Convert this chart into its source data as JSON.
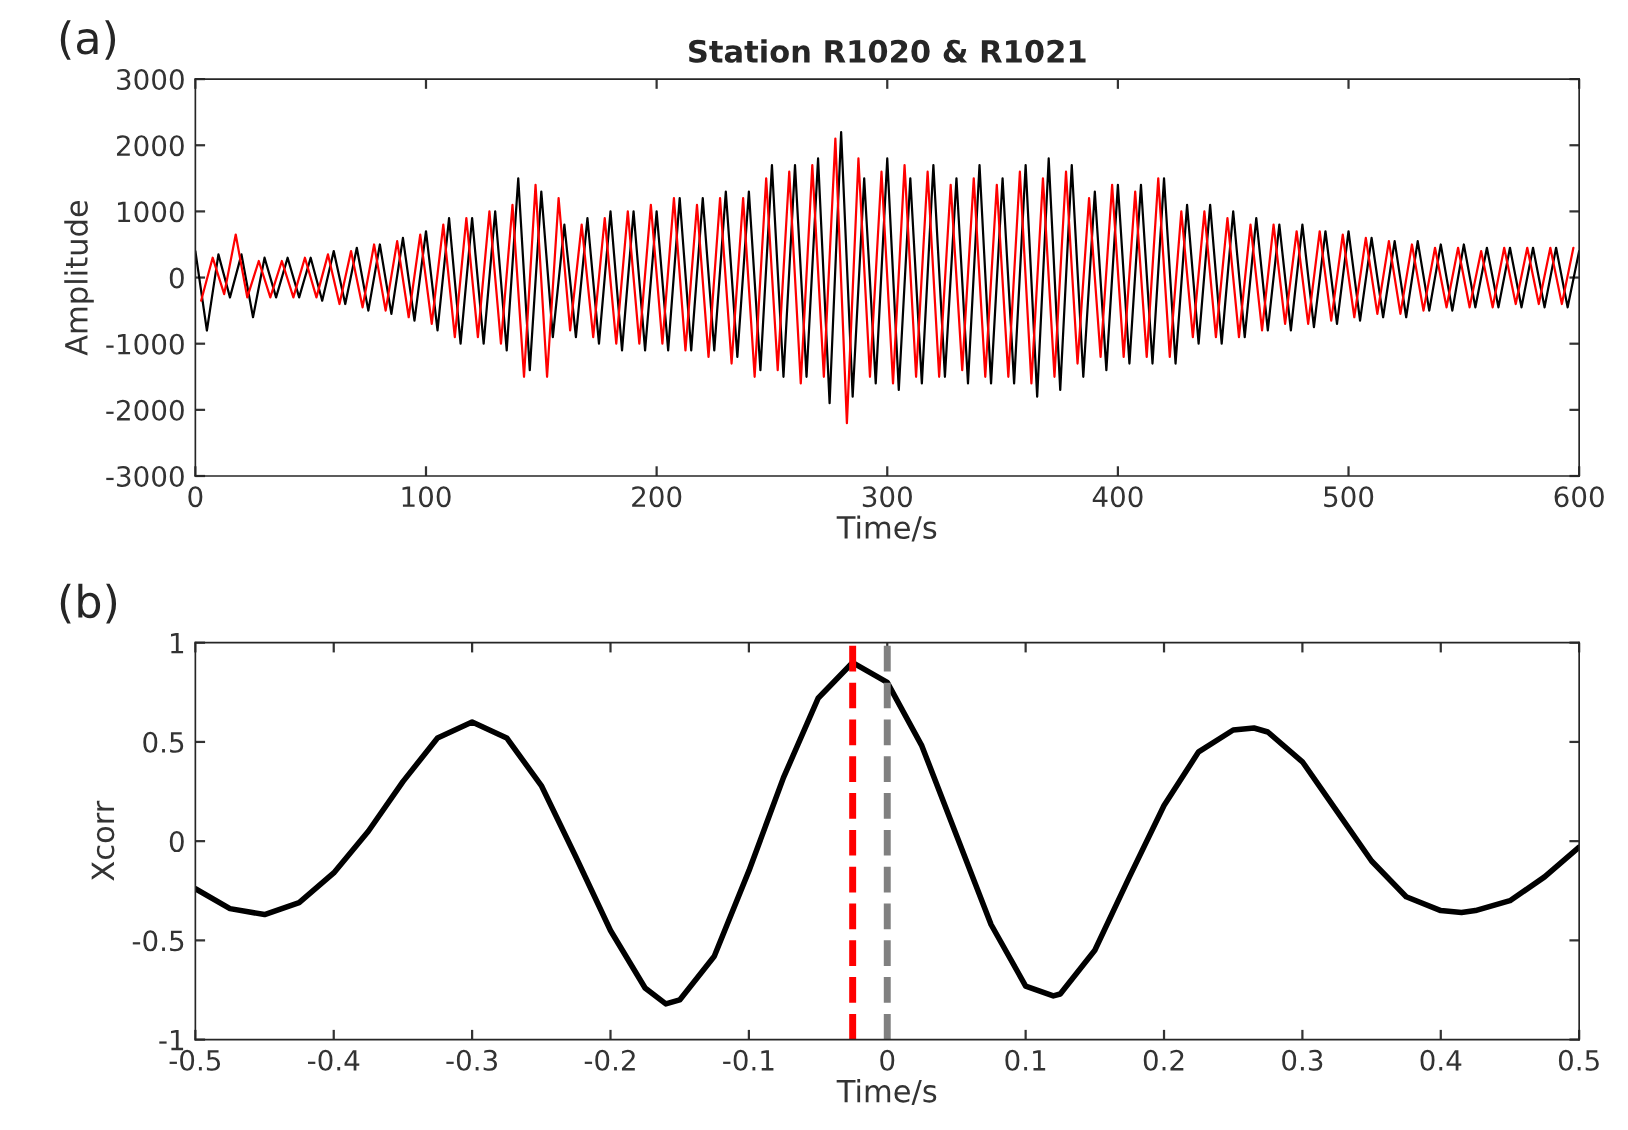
{
  "chart_data": [
    {
      "type": "line",
      "title": "Station R1020 & R1021",
      "xlabel": "Time/s",
      "ylabel": "Amplitude",
      "annotations": [
        "(a)"
      ],
      "xlim": [
        0,
        600
      ],
      "ylim": [
        -3000,
        3000
      ],
      "xticks": [
        0,
        100,
        200,
        300,
        400,
        500,
        600
      ],
      "yticks": [
        -3000,
        -2000,
        -1000,
        0,
        1000,
        2000,
        3000
      ],
      "grid": false,
      "legend": false,
      "series": [
        {
          "color": "#000000",
          "x": [
            0,
            5,
            10,
            15,
            20,
            25,
            30,
            35,
            40,
            45,
            50,
            55,
            60,
            65,
            70,
            75,
            80,
            85,
            90,
            95,
            100,
            105,
            110,
            115,
            120,
            125,
            130,
            135,
            140,
            145,
            150,
            155,
            160,
            165,
            170,
            175,
            180,
            185,
            190,
            195,
            200,
            205,
            210,
            215,
            220,
            225,
            230,
            235,
            240,
            245,
            250,
            255,
            260,
            265,
            270,
            275,
            280,
            285,
            290,
            295,
            300,
            305,
            310,
            315,
            320,
            325,
            330,
            335,
            340,
            345,
            350,
            355,
            360,
            365,
            370,
            375,
            380,
            385,
            390,
            395,
            400,
            405,
            410,
            415,
            420,
            425,
            430,
            435,
            440,
            445,
            450,
            455,
            460,
            465,
            470,
            475,
            480,
            485,
            490,
            495,
            500,
            505,
            510,
            515,
            520,
            525,
            530,
            535,
            540,
            545,
            550,
            555,
            560,
            565,
            570,
            575,
            580,
            585,
            590,
            595,
            600
          ],
          "values": [
            400,
            -800,
            350,
            -300,
            350,
            -600,
            300,
            -300,
            300,
            -300,
            300,
            -350,
            400,
            -400,
            450,
            -500,
            500,
            -550,
            600,
            -650,
            700,
            -800,
            900,
            -1000,
            900,
            -1000,
            1000,
            -1100,
            1500,
            -1400,
            1300,
            -900,
            800,
            -900,
            900,
            -1000,
            1000,
            -1100,
            1000,
            -1100,
            1000,
            -1100,
            1200,
            -1100,
            1200,
            -1100,
            1300,
            -1200,
            1300,
            -1400,
            1700,
            -1500,
            1700,
            -1500,
            1800,
            -1900,
            2200,
            -1800,
            1500,
            -1600,
            1800,
            -1700,
            1500,
            -1600,
            1700,
            -1500,
            1500,
            -1600,
            1700,
            -1600,
            1500,
            -1600,
            1700,
            -1800,
            1800,
            -1700,
            1700,
            -1500,
            1300,
            -1400,
            1400,
            -1300,
            1400,
            -1300,
            1500,
            -1300,
            1100,
            -1000,
            1100,
            -1000,
            1000,
            -900,
            900,
            -800,
            800,
            -800,
            800,
            -750,
            700,
            -700,
            700,
            -650,
            600,
            -600,
            550,
            -600,
            550,
            -500,
            500,
            -500,
            500,
            -450,
            450,
            -450,
            450,
            -450,
            450,
            -450,
            450,
            -450,
            400
          ]
        },
        {
          "color": "#ff0000",
          "x": [
            2.5,
            7.5,
            12.5,
            17.5,
            22.5,
            27.5,
            32.5,
            37.5,
            42.5,
            47.5,
            52.5,
            57.5,
            62.5,
            67.5,
            72.5,
            77.5,
            82.5,
            87.5,
            92.5,
            97.5,
            102.5,
            107.5,
            112.5,
            117.5,
            122.5,
            127.5,
            132.5,
            137.5,
            142.5,
            147.5,
            152.5,
            157.5,
            162.5,
            167.5,
            172.5,
            177.5,
            182.5,
            187.5,
            192.5,
            197.5,
            202.5,
            207.5,
            212.5,
            217.5,
            222.5,
            227.5,
            232.5,
            237.5,
            242.5,
            247.5,
            252.5,
            257.5,
            262.5,
            267.5,
            272.5,
            277.5,
            282.5,
            287.5,
            292.5,
            297.5,
            302.5,
            307.5,
            312.5,
            317.5,
            322.5,
            327.5,
            332.5,
            337.5,
            342.5,
            347.5,
            352.5,
            357.5,
            362.5,
            367.5,
            372.5,
            377.5,
            382.5,
            387.5,
            392.5,
            397.5,
            402.5,
            407.5,
            412.5,
            417.5,
            422.5,
            427.5,
            432.5,
            437.5,
            442.5,
            447.5,
            452.5,
            457.5,
            462.5,
            467.5,
            472.5,
            477.5,
            482.5,
            487.5,
            492.5,
            497.5,
            502.5,
            507.5,
            512.5,
            517.5,
            522.5,
            527.5,
            532.5,
            537.5,
            542.5,
            547.5,
            552.5,
            557.5,
            562.5,
            567.5,
            572.5,
            577.5,
            582.5,
            587.5,
            592.5,
            597.5
          ],
          "values": [
            -350,
            300,
            -250,
            650,
            -300,
            250,
            -300,
            250,
            -300,
            300,
            -300,
            350,
            -400,
            400,
            -450,
            500,
            -500,
            550,
            -600,
            650,
            -700,
            800,
            -900,
            900,
            -900,
            1000,
            -1000,
            1100,
            -1500,
            1400,
            -1500,
            1200,
            -800,
            800,
            -900,
            900,
            -1000,
            1000,
            -1000,
            1100,
            -1000,
            1200,
            -1100,
            1100,
            -1200,
            1200,
            -1300,
            1200,
            -1500,
            1500,
            -1400,
            1600,
            -1600,
            1700,
            -1500,
            2100,
            -2200,
            1800,
            -1500,
            1600,
            -1600,
            1700,
            -1500,
            1600,
            -1500,
            1400,
            -1400,
            1500,
            -1500,
            1400,
            -1500,
            1600,
            -1600,
            1500,
            -1500,
            1600,
            -1300,
            1200,
            -1200,
            1400,
            -1200,
            1300,
            -1200,
            1500,
            -1200,
            1000,
            -900,
            1000,
            -900,
            900,
            -900,
            800,
            -800,
            800,
            -700,
            700,
            -700,
            700,
            -650,
            650,
            -600,
            600,
            -550,
            550,
            -550,
            500,
            -500,
            450,
            -450,
            450,
            -450,
            400,
            -450,
            450,
            -400,
            450,
            -400,
            450,
            -400,
            450
          ]
        }
      ]
    },
    {
      "type": "line",
      "xlabel": "Time/s",
      "ylabel": "Xcorr",
      "annotations": [
        "(b)"
      ],
      "xlim": [
        -0.5,
        0.5
      ],
      "ylim": [
        -1,
        1
      ],
      "xticks": [
        -0.5,
        -0.4,
        -0.3,
        -0.2,
        -0.1,
        0,
        0.1,
        0.2,
        0.3,
        0.4,
        0.5
      ],
      "yticks": [
        -1,
        -0.5,
        0,
        0.5,
        1
      ],
      "grid": false,
      "legend": false,
      "series": [
        {
          "color": "#000000",
          "x": [
            -0.5,
            -0.475,
            -0.45,
            -0.425,
            -0.4,
            -0.375,
            -0.35,
            -0.325,
            -0.3,
            -0.275,
            -0.25,
            -0.225,
            -0.2,
            -0.175,
            -0.16,
            -0.15,
            -0.125,
            -0.1,
            -0.075,
            -0.05,
            -0.025,
            0,
            0.025,
            0.05,
            0.075,
            0.1,
            0.12,
            0.125,
            0.15,
            0.175,
            0.2,
            0.225,
            0.25,
            0.265,
            0.275,
            0.3,
            0.325,
            0.35,
            0.375,
            0.4,
            0.415,
            0.425,
            0.45,
            0.475,
            0.5
          ],
          "values": [
            -0.24,
            -0.34,
            -0.37,
            -0.31,
            -0.16,
            0.05,
            0.3,
            0.52,
            0.6,
            0.52,
            0.28,
            -0.08,
            -0.45,
            -0.74,
            -0.82,
            -0.8,
            -0.58,
            -0.15,
            0.32,
            0.72,
            0.9,
            0.8,
            0.48,
            0.03,
            -0.42,
            -0.73,
            -0.78,
            -0.77,
            -0.55,
            -0.18,
            0.18,
            0.45,
            0.56,
            0.57,
            0.55,
            0.4,
            0.15,
            -0.1,
            -0.28,
            -0.35,
            -0.36,
            -0.35,
            -0.3,
            -0.18,
            -0.03
          ]
        }
      ],
      "ref_lines": [
        {
          "axis": "x",
          "value": -0.025,
          "color": "#ff0000",
          "line_style": "dashed"
        },
        {
          "axis": "x",
          "value": 0,
          "color": "#808080",
          "line_style": "dashed"
        }
      ]
    }
  ]
}
